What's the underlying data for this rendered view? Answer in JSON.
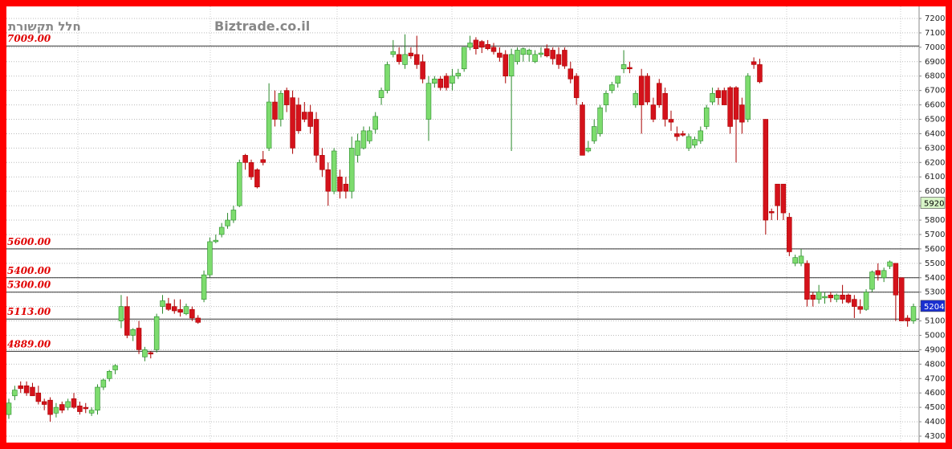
{
  "chart_data": {
    "type": "candlestick",
    "title": "חלל תקשורת",
    "watermark": "Biztrade.co.il",
    "ylim": [
      4300,
      7200
    ],
    "yticks": [
      4300,
      4400,
      4500,
      4600,
      4700,
      4800,
      4900,
      5000,
      5100,
      5200,
      5300,
      5400,
      5500,
      5600,
      5700,
      5800,
      5900,
      6000,
      6100,
      6200,
      6300,
      6400,
      6500,
      6600,
      6700,
      6800,
      6900,
      7000,
      7100,
      7200
    ],
    "grid": true,
    "up_color": "#7ddc6e",
    "down_color": "#d4121b",
    "levels": [
      {
        "value": 7009,
        "label": "7009.00"
      },
      {
        "value": 5600,
        "label": "5600.00"
      },
      {
        "value": 5400,
        "label": "5400.00"
      },
      {
        "value": 5300,
        "label": "5300.00"
      },
      {
        "value": 5113,
        "label": "5113.00"
      },
      {
        "value": 4889,
        "label": "4889.00"
      }
    ],
    "price_tags": [
      {
        "value": 5920,
        "color": "#d8f5c8"
      },
      {
        "value": 5204,
        "color": "#1a2fd0"
      }
    ],
    "candles": [
      [
        4450,
        4560,
        4420,
        4530
      ],
      [
        4580,
        4650,
        4550,
        4620
      ],
      [
        4650,
        4680,
        4600,
        4630
      ],
      [
        4650,
        4680,
        4580,
        4600
      ],
      [
        4640,
        4670,
        4580,
        4580
      ],
      [
        4600,
        4650,
        4520,
        4540
      ],
      [
        4540,
        4560,
        4480,
        4520
      ],
      [
        4550,
        4570,
        4400,
        4450
      ],
      [
        4460,
        4530,
        4430,
        4500
      ],
      [
        4520,
        4540,
        4460,
        4480
      ],
      [
        4500,
        4560,
        4480,
        4540
      ],
      [
        4560,
        4600,
        4490,
        4500
      ],
      [
        4510,
        4540,
        4450,
        4470
      ],
      [
        4500,
        4530,
        4460,
        4490
      ],
      [
        4460,
        4500,
        4440,
        4480
      ],
      [
        4480,
        4660,
        4450,
        4640
      ],
      [
        4640,
        4700,
        4620,
        4690
      ],
      [
        4700,
        4760,
        4680,
        4750
      ],
      [
        4760,
        4800,
        4730,
        4790
      ],
      [
        5100,
        5280,
        5050,
        5200
      ],
      [
        5200,
        5270,
        4980,
        5000
      ],
      [
        5000,
        5050,
        4960,
        5040
      ],
      [
        5050,
        5100,
        4870,
        4900
      ],
      [
        4850,
        4920,
        4820,
        4900
      ],
      [
        4880,
        4890,
        4840,
        4870
      ],
      [
        4900,
        5150,
        4880,
        5130
      ],
      [
        5200,
        5280,
        5150,
        5240
      ],
      [
        5220,
        5260,
        5170,
        5180
      ],
      [
        5200,
        5250,
        5150,
        5170
      ],
      [
        5180,
        5250,
        5130,
        5160
      ],
      [
        5150,
        5220,
        5140,
        5200
      ],
      [
        5180,
        5200,
        5100,
        5120
      ],
      [
        5120,
        5140,
        5080,
        5090
      ],
      [
        5250,
        5450,
        5230,
        5420
      ],
      [
        5420,
        5680,
        5400,
        5650
      ],
      [
        5650,
        5700,
        5640,
        5660
      ],
      [
        5700,
        5780,
        5680,
        5750
      ],
      [
        5760,
        5850,
        5740,
        5800
      ],
      [
        5800,
        5900,
        5780,
        5870
      ],
      [
        5900,
        6220,
        5890,
        6200
      ],
      [
        6250,
        6260,
        6150,
        6200
      ],
      [
        6200,
        6220,
        6080,
        6100
      ],
      [
        6150,
        6160,
        6020,
        6030
      ],
      [
        6220,
        6280,
        6180,
        6200
      ],
      [
        6300,
        6750,
        6280,
        6620
      ],
      [
        6620,
        6700,
        6450,
        6500
      ],
      [
        6500,
        6700,
        6450,
        6680
      ],
      [
        6700,
        6720,
        6550,
        6600
      ],
      [
        6650,
        6700,
        6260,
        6300
      ],
      [
        6600,
        6650,
        6400,
        6420
      ],
      [
        6550,
        6620,
        6480,
        6500
      ],
      [
        6550,
        6600,
        6400,
        6450
      ],
      [
        6500,
        6550,
        6200,
        6250
      ],
      [
        6250,
        6300,
        6100,
        6150
      ],
      [
        6150,
        6200,
        5900,
        6000
      ],
      [
        6000,
        6300,
        5980,
        6280
      ],
      [
        6100,
        6150,
        5950,
        6000
      ],
      [
        6050,
        6100,
        5950,
        6000
      ],
      [
        6000,
        6380,
        5950,
        6300
      ],
      [
        6250,
        6400,
        6200,
        6350
      ],
      [
        6300,
        6450,
        6290,
        6420
      ],
      [
        6350,
        6450,
        6330,
        6420
      ],
      [
        6430,
        6550,
        6400,
        6520
      ],
      [
        6650,
        6720,
        6600,
        6700
      ],
      [
        6700,
        6900,
        6680,
        6880
      ],
      [
        6950,
        7050,
        6930,
        6970
      ],
      [
        6950,
        7000,
        6880,
        6900
      ],
      [
        6880,
        7090,
        6850,
        6950
      ],
      [
        6960,
        7000,
        6920,
        6940
      ],
      [
        6950,
        7080,
        6850,
        6880
      ],
      [
        6900,
        6950,
        6750,
        6780
      ],
      [
        6500,
        6800,
        6350,
        6750
      ],
      [
        6750,
        6800,
        6720,
        6780
      ],
      [
        6780,
        6800,
        6700,
        6720
      ],
      [
        6800,
        6820,
        6700,
        6720
      ],
      [
        6750,
        6850,
        6700,
        6800
      ],
      [
        6800,
        6850,
        6780,
        6820
      ],
      [
        6850,
        7000,
        6830,
        7000
      ],
      [
        7000,
        7080,
        6980,
        7030
      ],
      [
        7050,
        7070,
        6950,
        6990
      ],
      [
        7040,
        7050,
        6960,
        7000
      ],
      [
        7020,
        7050,
        6980,
        6990
      ],
      [
        7000,
        7030,
        6950,
        6970
      ],
      [
        6960,
        7000,
        6900,
        6930
      ],
      [
        6950,
        6980,
        6750,
        6800
      ],
      [
        6800,
        6990,
        6280,
        6950
      ],
      [
        6900,
        7000,
        6880,
        6980
      ],
      [
        6950,
        7000,
        6900,
        6990
      ],
      [
        6950,
        6990,
        6900,
        6980
      ],
      [
        6900,
        6980,
        6890,
        6950
      ],
      [
        6950,
        7000,
        6930,
        6960
      ],
      [
        6990,
        7020,
        6930,
        6940
      ],
      [
        6980,
        7000,
        6880,
        6920
      ],
      [
        6950,
        7000,
        6850,
        6880
      ],
      [
        6980,
        7000,
        6850,
        6870
      ],
      [
        6850,
        6900,
        6750,
        6780
      ],
      [
        6800,
        6820,
        6600,
        6650
      ],
      [
        6600,
        6620,
        6250,
        6250
      ],
      [
        6280,
        6350,
        6270,
        6300
      ],
      [
        6350,
        6500,
        6330,
        6450
      ],
      [
        6400,
        6600,
        6380,
        6580
      ],
      [
        6600,
        6700,
        6550,
        6680
      ],
      [
        6700,
        6760,
        6680,
        6740
      ],
      [
        6750,
        6800,
        6720,
        6800
      ],
      [
        6850,
        6980,
        6820,
        6880
      ],
      [
        6860,
        6900,
        6820,
        6850
      ],
      [
        6600,
        6700,
        6580,
        6680
      ],
      [
        6800,
        6850,
        6400,
        6600
      ],
      [
        6800,
        6820,
        6600,
        6620
      ],
      [
        6600,
        6650,
        6480,
        6500
      ],
      [
        6750,
        6780,
        6580,
        6600
      ],
      [
        6680,
        6720,
        6450,
        6500
      ],
      [
        6500,
        6560,
        6420,
        6480
      ],
      [
        6400,
        6450,
        6350,
        6380
      ],
      [
        6400,
        6420,
        6380,
        6390
      ],
      [
        6300,
        6400,
        6280,
        6380
      ],
      [
        6320,
        6380,
        6300,
        6360
      ],
      [
        6350,
        6450,
        6330,
        6420
      ],
      [
        6450,
        6600,
        6430,
        6580
      ],
      [
        6620,
        6720,
        6600,
        6680
      ],
      [
        6700,
        6720,
        6600,
        6650
      ],
      [
        6700,
        6720,
        6600,
        6600
      ],
      [
        6720,
        6730,
        6400,
        6450
      ],
      [
        6720,
        6730,
        6200,
        6500
      ],
      [
        6600,
        6650,
        6400,
        6480
      ],
      [
        6500,
        6820,
        6480,
        6800
      ],
      [
        6900,
        6930,
        6850,
        6880
      ],
      [
        6880,
        6920,
        6750,
        6760
      ],
      [
        6500,
        6500,
        5700,
        5800
      ],
      [
        5860,
        5880,
        5800,
        5850
      ],
      [
        6050,
        6050,
        5800,
        5900
      ],
      [
        6050,
        6050,
        5800,
        5850
      ],
      [
        5820,
        5850,
        5550,
        5580
      ],
      [
        5500,
        5560,
        5480,
        5540
      ],
      [
        5500,
        5600,
        5480,
        5550
      ],
      [
        5500,
        5520,
        5200,
        5250
      ],
      [
        5280,
        5300,
        5200,
        5250
      ],
      [
        5250,
        5350,
        5220,
        5300
      ],
      [
        5260,
        5300,
        5220,
        5270
      ],
      [
        5280,
        5300,
        5230,
        5260
      ],
      [
        5250,
        5290,
        5230,
        5280
      ],
      [
        5280,
        5350,
        5220,
        5250
      ],
      [
        5280,
        5290,
        5220,
        5230
      ],
      [
        5250,
        5280,
        5120,
        5200
      ],
      [
        5200,
        5250,
        5150,
        5180
      ],
      [
        5180,
        5320,
        5170,
        5300
      ],
      [
        5320,
        5450,
        5300,
        5440
      ],
      [
        5450,
        5500,
        5380,
        5420
      ],
      [
        5400,
        5470,
        5370,
        5450
      ],
      [
        5480,
        5520,
        5460,
        5510
      ],
      [
        5500,
        5500,
        5100,
        5280
      ],
      [
        5400,
        5400,
        5100,
        5100
      ],
      [
        5120,
        5140,
        5060,
        5100
      ],
      [
        5100,
        5220,
        5080,
        5200
      ]
    ]
  }
}
